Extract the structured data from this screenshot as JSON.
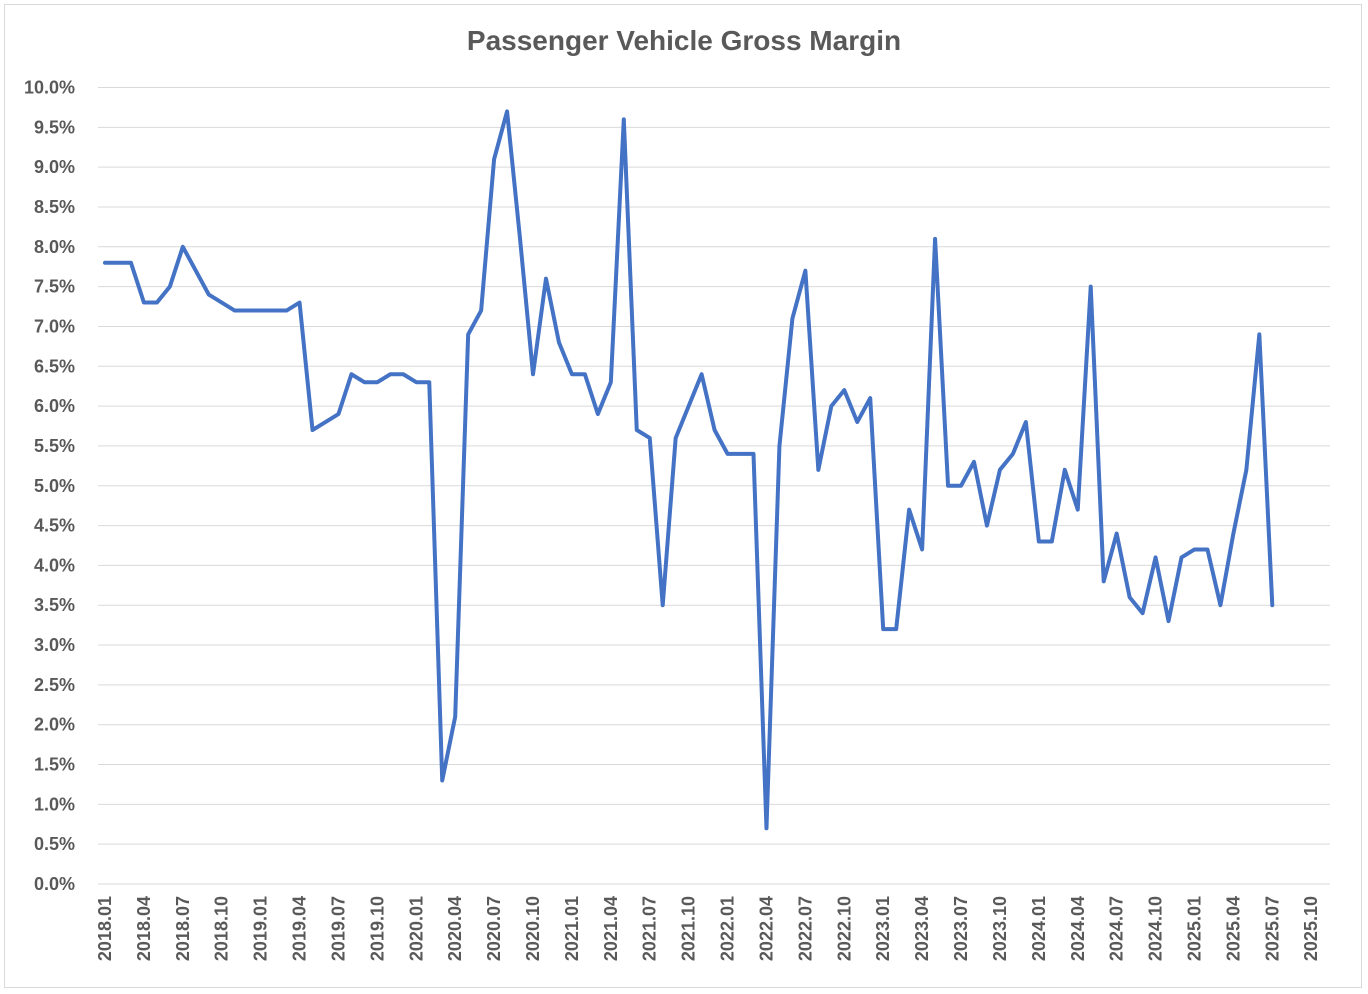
{
  "chart_data": {
    "type": "line",
    "title": "Passenger Vehicle Gross Margin",
    "xlabel": "",
    "ylabel": "",
    "ylim": [
      0,
      0.1
    ],
    "y_ticks": [
      0,
      0.005,
      0.01,
      0.015,
      0.02,
      0.025,
      0.03,
      0.035,
      0.04,
      0.045,
      0.05,
      0.055,
      0.06,
      0.065,
      0.07,
      0.075,
      0.08,
      0.085,
      0.09,
      0.095,
      0.1
    ],
    "y_tick_labels": [
      "0.0%",
      "0.5%",
      "1.0%",
      "1.5%",
      "2.0%",
      "2.5%",
      "3.0%",
      "3.5%",
      "4.0%",
      "4.5%",
      "5.0%",
      "5.5%",
      "6.0%",
      "6.5%",
      "7.0%",
      "7.5%",
      "8.0%",
      "8.5%",
      "9.0%",
      "9.5%",
      "10.0%"
    ],
    "x_tick_labels": [
      "2018.01",
      "2018.04",
      "2018.07",
      "2018.10",
      "2019.01",
      "2019.04",
      "2019.07",
      "2019.10",
      "2020.01",
      "2020.04",
      "2020.07",
      "2020.10",
      "2021.01",
      "2021.04",
      "2021.07",
      "2021.10",
      "2022.01",
      "2022.04",
      "2022.07",
      "2022.10",
      "2023.01",
      "2023.04",
      "2023.07",
      "2023.10",
      "2024.01",
      "2024.04",
      "2024.07",
      "2024.10",
      "2025.01",
      "2025.04",
      "2025.07",
      "2025.10"
    ],
    "grid": "horizontal",
    "legend": "none",
    "series": [
      {
        "color": "#4472c4",
        "x": [
          "2018.01",
          "2018.02",
          "2018.03",
          "2018.04",
          "2018.05",
          "2018.06",
          "2018.07",
          "2018.08",
          "2018.09",
          "2018.10",
          "2018.11",
          "2018.12",
          "2019.01",
          "2019.02",
          "2019.03",
          "2019.04",
          "2019.05",
          "2019.06",
          "2019.07",
          "2019.08",
          "2019.09",
          "2019.10",
          "2019.11",
          "2019.12",
          "2020.01",
          "2020.02",
          "2020.03",
          "2020.04",
          "2020.05",
          "2020.06",
          "2020.07",
          "2020.08",
          "2020.09",
          "2020.10",
          "2020.11",
          "2020.12",
          "2021.01",
          "2021.02",
          "2021.03",
          "2021.04",
          "2021.05",
          "2021.06",
          "2021.07",
          "2021.08",
          "2021.09",
          "2021.10",
          "2021.11",
          "2021.12",
          "2022.01",
          "2022.02",
          "2022.03",
          "2022.04",
          "2022.05",
          "2022.06",
          "2022.07",
          "2022.08",
          "2022.09",
          "2022.10",
          "2022.11",
          "2022.12",
          "2023.01",
          "2023.02",
          "2023.03",
          "2023.04",
          "2023.05",
          "2023.06",
          "2023.07",
          "2023.08",
          "2023.09",
          "2023.10",
          "2023.11",
          "2023.12",
          "2024.01",
          "2024.02",
          "2024.03",
          "2024.04",
          "2024.05",
          "2024.06",
          "2024.07",
          "2024.08",
          "2024.09",
          "2024.10",
          "2024.11",
          "2024.12",
          "2025.01",
          "2025.02",
          "2025.03",
          "2025.04",
          "2025.05",
          "2025.06",
          "2025.07"
        ],
        "values": [
          0.078,
          0.078,
          0.078,
          0.073,
          0.073,
          0.075,
          0.08,
          0.077,
          0.074,
          0.073,
          0.072,
          0.072,
          0.072,
          0.072,
          0.072,
          0.073,
          0.057,
          0.058,
          0.059,
          0.064,
          0.063,
          0.063,
          0.064,
          0.064,
          0.063,
          0.063,
          0.013,
          0.021,
          0.069,
          0.072,
          0.091,
          0.097,
          0.081,
          0.064,
          0.076,
          0.068,
          0.064,
          0.064,
          0.059,
          0.063,
          0.096,
          0.057,
          0.056,
          0.035,
          0.056,
          0.06,
          0.064,
          0.057,
          0.054,
          0.054,
          0.054,
          0.007,
          0.055,
          0.071,
          0.077,
          0.052,
          0.06,
          0.062,
          0.058,
          0.061,
          0.032,
          0.032,
          0.047,
          0.042,
          0.081,
          0.05,
          0.05,
          0.053,
          0.045,
          0.052,
          0.054,
          0.058,
          0.043,
          0.043,
          0.052,
          0.047,
          0.075,
          0.038,
          0.044,
          0.036,
          0.034,
          0.041,
          0.033,
          0.041,
          0.042,
          0.042,
          0.035,
          0.044,
          0.052,
          0.069,
          0.035
        ]
      }
    ]
  }
}
